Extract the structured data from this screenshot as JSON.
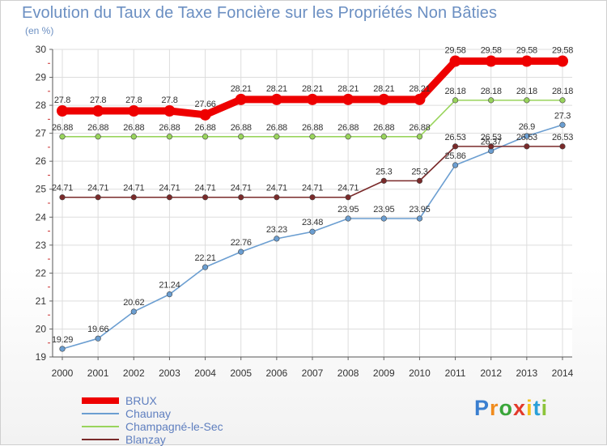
{
  "chart_data": {
    "type": "line",
    "title": "Evolution du Taux de Taxe Foncière sur les Propriétés Non Bâties",
    "ylabel": "(en %)",
    "xlabel": "",
    "ylim": [
      19,
      30
    ],
    "yticks": [
      "19",
      "20",
      "21",
      "22",
      "23",
      "24",
      "25",
      "26",
      "27",
      "28",
      "29",
      "30"
    ],
    "categories": [
      "2000",
      "2001",
      "2002",
      "2003",
      "2004",
      "2005",
      "2006",
      "2007",
      "2008",
      "2009",
      "2010",
      "2011",
      "2012",
      "2013",
      "2014"
    ],
    "series": [
      {
        "name": "BRUX",
        "color": "#ee0000",
        "values": [
          27.8,
          27.8,
          27.8,
          27.8,
          27.66,
          28.21,
          28.21,
          28.21,
          28.21,
          28.21,
          28.21,
          29.58,
          29.58,
          29.58,
          29.58
        ],
        "labels": [
          "27.8",
          "27.8",
          "27.8",
          "27.8",
          "27.66",
          "28.21",
          "28.21",
          "28.21",
          "28.21",
          "28.21",
          "28.21",
          "29.58",
          "29.58",
          "29.58",
          "29.58"
        ]
      },
      {
        "name": "Chaunay",
        "color": "#6b9ed1",
        "values": [
          19.29,
          19.66,
          20.62,
          21.24,
          22.21,
          22.76,
          23.23,
          23.48,
          23.95,
          23.95,
          23.95,
          25.86,
          26.37,
          26.9,
          27.3
        ],
        "labels": [
          "19.29",
          "19.66",
          "20.62",
          "21.24",
          "22.21",
          "22.76",
          "23.23",
          "23.48",
          "23.95",
          "23.95",
          "23.95",
          "25.86",
          "26.37",
          "26.9",
          "27.3"
        ]
      },
      {
        "name": "Champagné-le-Sec",
        "color": "#99d45c",
        "values": [
          26.88,
          26.88,
          26.88,
          26.88,
          26.88,
          26.88,
          26.88,
          26.88,
          26.88,
          26.88,
          26.88,
          28.18,
          28.18,
          28.18,
          28.18
        ],
        "labels": [
          "26.88",
          "26.88",
          "26.88",
          "26.88",
          "26.88",
          "26.88",
          "26.88",
          "26.88",
          "26.88",
          "26.88",
          "26.88",
          "28.18",
          "28.18",
          "28.18",
          "28.18"
        ]
      },
      {
        "name": "Blanzay",
        "color": "#7a2a2a",
        "values": [
          24.71,
          24.71,
          24.71,
          24.71,
          24.71,
          24.71,
          24.71,
          24.71,
          24.71,
          25.3,
          25.3,
          26.53,
          26.53,
          26.53,
          26.53
        ],
        "labels": [
          "24.71",
          "24.71",
          "24.71",
          "24.71",
          "24.71",
          "24.71",
          "24.71",
          "24.71",
          "24.71",
          "25.3",
          "25.3",
          "26.53",
          "26.53",
          "26.53",
          "26.53"
        ]
      }
    ]
  },
  "logo": {
    "letters": [
      "P",
      "r",
      "o",
      "x",
      "i",
      "t",
      "i"
    ],
    "colors": [
      "#3a7fd0",
      "#f08c1e",
      "#3aa63a",
      "#e23a2a",
      "#f2c21a",
      "#2aa0d8",
      "#8cc43a"
    ]
  }
}
